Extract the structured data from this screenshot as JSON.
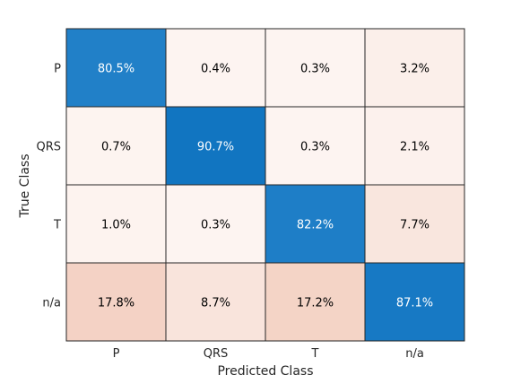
{
  "chart_data": {
    "type": "heatmap",
    "title": "",
    "xlabel": "Predicted Class",
    "ylabel": "True Class",
    "x_categories": [
      "P",
      "QRS",
      "T",
      "n/a"
    ],
    "y_categories": [
      "P",
      "QRS",
      "T",
      "n/a"
    ],
    "values": [
      [
        80.5,
        0.4,
        0.3,
        3.2
      ],
      [
        0.7,
        90.7,
        0.3,
        2.1
      ],
      [
        1.0,
        0.3,
        82.2,
        7.7
      ],
      [
        17.8,
        8.7,
        17.2,
        87.1
      ]
    ],
    "cell_labels": [
      [
        "80.5%",
        "0.4%",
        "0.3%",
        "3.2%"
      ],
      [
        "0.7%",
        "90.7%",
        "0.3%",
        "2.1%"
      ],
      [
        "1.0%",
        "0.3%",
        "82.2%",
        "7.7%"
      ],
      [
        "17.8%",
        "8.7%",
        "17.2%",
        "87.1%"
      ]
    ],
    "colors": {
      "low": "#fdf5f2",
      "mid": "#f4d2c4",
      "high": "#0a70be",
      "light_text": "#ffffff",
      "dark_text": "#000000",
      "grid": "#262626"
    }
  }
}
